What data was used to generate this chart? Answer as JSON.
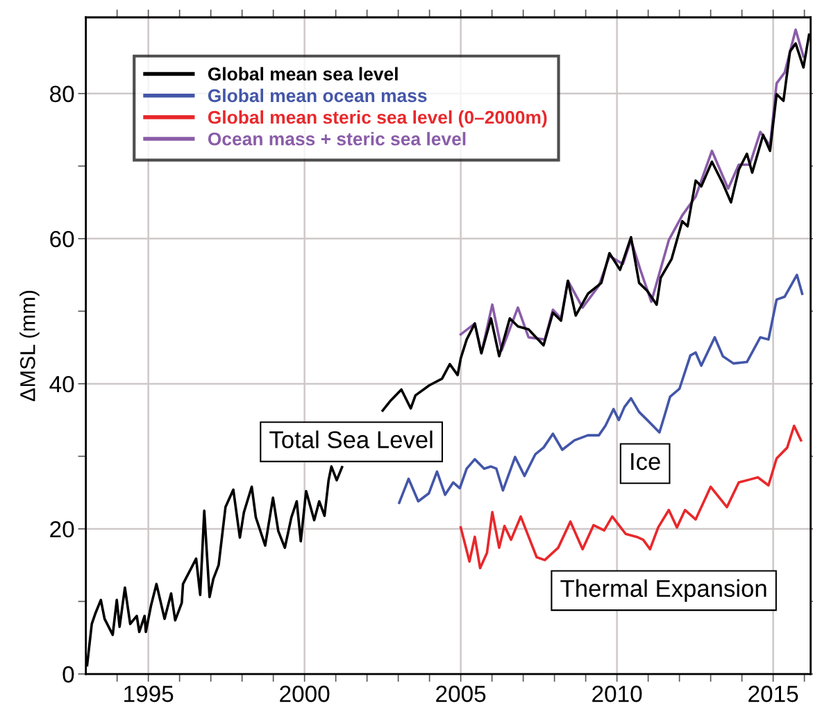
{
  "chart_data": {
    "type": "line",
    "ylabel": "ΔMSL (mm)",
    "xlim": [
      1993,
      2016.2
    ],
    "ylim": [
      0,
      90.5
    ],
    "xticks": [
      {
        "value": 1994,
        "label": null
      },
      1995,
      {
        "value": 1996,
        "label": null
      },
      {
        "value": 1997,
        "label": null
      },
      {
        "value": 1998,
        "label": null
      },
      {
        "value": 1999,
        "label": null
      },
      2000,
      {
        "value": 2001,
        "label": null
      },
      {
        "value": 2002,
        "label": null
      },
      {
        "value": 2003,
        "label": null
      },
      {
        "value": 2004,
        "label": null
      },
      2005,
      {
        "value": 2006,
        "label": null
      },
      {
        "value": 2007,
        "label": null
      },
      {
        "value": 2008,
        "label": null
      },
      {
        "value": 2009,
        "label": null
      },
      2010,
      {
        "value": 2011,
        "label": null
      },
      {
        "value": 2012,
        "label": null
      },
      {
        "value": 2013,
        "label": null
      },
      {
        "value": 2014,
        "label": null
      },
      2015,
      {
        "value": 2016,
        "label": null
      }
    ],
    "yticks": [
      0,
      {
        "value": 10,
        "label": null
      },
      20,
      {
        "value": 30,
        "label": null
      },
      40,
      {
        "value": 50,
        "label": null
      },
      60,
      {
        "value": 70,
        "label": null
      },
      80
    ],
    "grid": true,
    "legend": "top left",
    "line_style": "solid",
    "marker": "none",
    "annotations": [
      "Total Sea Level",
      "Ice",
      "Thermal Expansion"
    ],
    "series": [
      {
        "name": "Global mean sea level",
        "color": "#000000",
        "x": [
          1993.04,
          1993.19,
          1993.31,
          1993.48,
          1993.6,
          1993.86,
          1993.99,
          1994.08,
          1994.25,
          1994.42,
          1994.63,
          1994.71,
          1994.88,
          1994.92,
          1995.09,
          1995.26,
          1995.52,
          1995.73,
          1995.86,
          1996.07,
          1996.11,
          1996.53,
          1996.66,
          1996.79,
          1996.96,
          1997.08,
          1997.25,
          1997.47,
          1997.72,
          1997.93,
          1998.06,
          1998.31,
          1998.44,
          1998.74,
          1998.99,
          1999.16,
          1999.37,
          1999.58,
          1999.75,
          1999.88,
          2000.05,
          2000.31,
          2000.47,
          2000.64,
          2000.77,
          2000.86,
          2001.03,
          2001.2,
          2002.0,
          2002.5,
          2002.76,
          2003.1,
          2003.4,
          2003.55,
          2004.0,
          2004.4,
          2004.65,
          2004.9,
          2005.0,
          2005.19,
          2005.45,
          2005.66,
          2005.97,
          2006.23,
          2006.57,
          2006.83,
          2007.17,
          2007.65,
          2007.95,
          2008.21,
          2008.43,
          2008.68,
          2009.07,
          2009.5,
          2009.76,
          2010.1,
          2010.45,
          2010.71,
          2010.97,
          2011.27,
          2011.4,
          2011.75,
          2012.09,
          2012.26,
          2012.52,
          2012.7,
          2013.04,
          2013.39,
          2013.65,
          2013.9,
          2014.16,
          2014.33,
          2014.68,
          2014.9,
          2015.11,
          2015.33,
          2015.54,
          2015.72,
          2015.97,
          2016.15
        ],
        "values": [
          1.2,
          6.9,
          8.4,
          10.2,
          7.6,
          5.4,
          10.2,
          6.5,
          11.9,
          6.9,
          8.0,
          5.8,
          8.0,
          5.8,
          9.5,
          12.4,
          7.6,
          11.1,
          7.4,
          9.8,
          12.4,
          15.9,
          10.9,
          22.5,
          10.6,
          13.1,
          15.0,
          23.0,
          25.4,
          18.8,
          22.3,
          25.8,
          21.6,
          17.7,
          24.3,
          19.7,
          17.4,
          21.6,
          23.8,
          18.3,
          25.2,
          21.2,
          23.8,
          21.8,
          26.7,
          28.6,
          26.7,
          28.5,
          null,
          36.3,
          37.7,
          39.2,
          36.6,
          38.4,
          39.8,
          40.7,
          42.7,
          41.2,
          43.5,
          46.1,
          48.3,
          44.2,
          49.0,
          43.8,
          49.0,
          47.9,
          47.5,
          45.3,
          49.8,
          48.7,
          54.2,
          49.4,
          52.4,
          53.9,
          58.0,
          55.7,
          60.2,
          53.9,
          52.8,
          50.9,
          54.6,
          57.2,
          62.4,
          61.7,
          68.0,
          67.2,
          70.6,
          67.6,
          65.0,
          69.5,
          71.7,
          69.1,
          74.3,
          72.1,
          79.9,
          79.0,
          85.8,
          86.9,
          83.6,
          88.1
        ]
      },
      {
        "name": "Global mean ocean mass",
        "color": "#4356a8",
        "x": [
          2003.03,
          2003.33,
          2003.64,
          2003.98,
          2004.24,
          2004.5,
          2004.76,
          2004.97,
          2005.19,
          2005.45,
          2005.75,
          2005.97,
          2006.14,
          2006.35,
          2006.74,
          2007.04,
          2007.39,
          2007.65,
          2007.95,
          2008.25,
          2008.64,
          2009.07,
          2009.42,
          2009.63,
          2009.89,
          2010.06,
          2010.24,
          2010.45,
          2010.71,
          2010.97,
          2011.36,
          2011.53,
          2011.7,
          2012.0,
          2012.35,
          2012.52,
          2012.7,
          2013.13,
          2013.39,
          2013.73,
          2014.16,
          2014.59,
          2014.85,
          2015.11,
          2015.37,
          2015.76,
          2015.93
        ],
        "values": [
          23.6,
          26.9,
          23.8,
          24.9,
          27.9,
          24.7,
          26.4,
          25.6,
          28.3,
          29.6,
          28.3,
          28.6,
          28.3,
          25.3,
          29.9,
          27.3,
          30.3,
          31.2,
          33.1,
          30.9,
          32.2,
          32.9,
          32.9,
          34.2,
          36.5,
          35.0,
          36.8,
          38.0,
          36.1,
          35.0,
          33.3,
          35.7,
          38.2,
          39.3,
          43.9,
          44.3,
          42.5,
          46.4,
          43.8,
          42.8,
          43.0,
          46.4,
          46.1,
          51.6,
          52.0,
          55.0,
          52.4
        ]
      },
      {
        "name": "Global mean steric sea level (0–2000m)",
        "color": "#e8282b",
        "x": [
          2005.0,
          2005.28,
          2005.45,
          2005.62,
          2005.84,
          2006.01,
          2006.23,
          2006.4,
          2006.61,
          2006.92,
          2007.43,
          2007.69,
          2008.12,
          2008.51,
          2008.9,
          2009.25,
          2009.59,
          2009.85,
          2010.28,
          2010.63,
          2010.84,
          2011.06,
          2011.32,
          2011.66,
          2011.92,
          2012.18,
          2012.52,
          2013.0,
          2013.52,
          2013.9,
          2014.25,
          2014.51,
          2014.85,
          2015.11,
          2015.45,
          2015.67,
          2015.89
        ],
        "values": [
          20.2,
          15.5,
          18.9,
          14.6,
          16.7,
          22.3,
          17.4,
          20.4,
          18.5,
          21.7,
          16.1,
          15.7,
          17.4,
          21.0,
          17.2,
          20.5,
          19.8,
          21.7,
          19.3,
          18.9,
          18.5,
          17.2,
          20.2,
          22.6,
          20.2,
          22.6,
          21.3,
          25.8,
          23.0,
          26.4,
          26.8,
          27.1,
          26.0,
          29.7,
          31.2,
          34.2,
          32.2
        ]
      },
      {
        "name": "Ocean mass + steric sea level",
        "color": "#8a5ca8",
        "x": [
          2005.0,
          2005.45,
          2005.66,
          2006.01,
          2006.31,
          2006.83,
          2007.17,
          2007.69,
          2007.95,
          2008.21,
          2008.43,
          2008.9,
          2009.42,
          2009.76,
          2010.19,
          2010.45,
          2010.75,
          2011.1,
          2011.66,
          2012.09,
          2012.52,
          2013.04,
          2013.56,
          2013.9,
          2014.25,
          2014.59,
          2014.9,
          2015.11,
          2015.37,
          2015.72,
          2015.97
        ],
        "values": [
          46.8,
          48.3,
          44.2,
          50.9,
          44.6,
          50.5,
          46.4,
          46.1,
          50.2,
          49.0,
          54.2,
          50.5,
          53.5,
          57.6,
          56.5,
          59.8,
          55.7,
          51.3,
          59.8,
          63.2,
          65.8,
          72.1,
          66.9,
          70.2,
          70.2,
          74.7,
          72.8,
          81.4,
          82.9,
          88.8,
          85.1
        ]
      }
    ]
  }
}
